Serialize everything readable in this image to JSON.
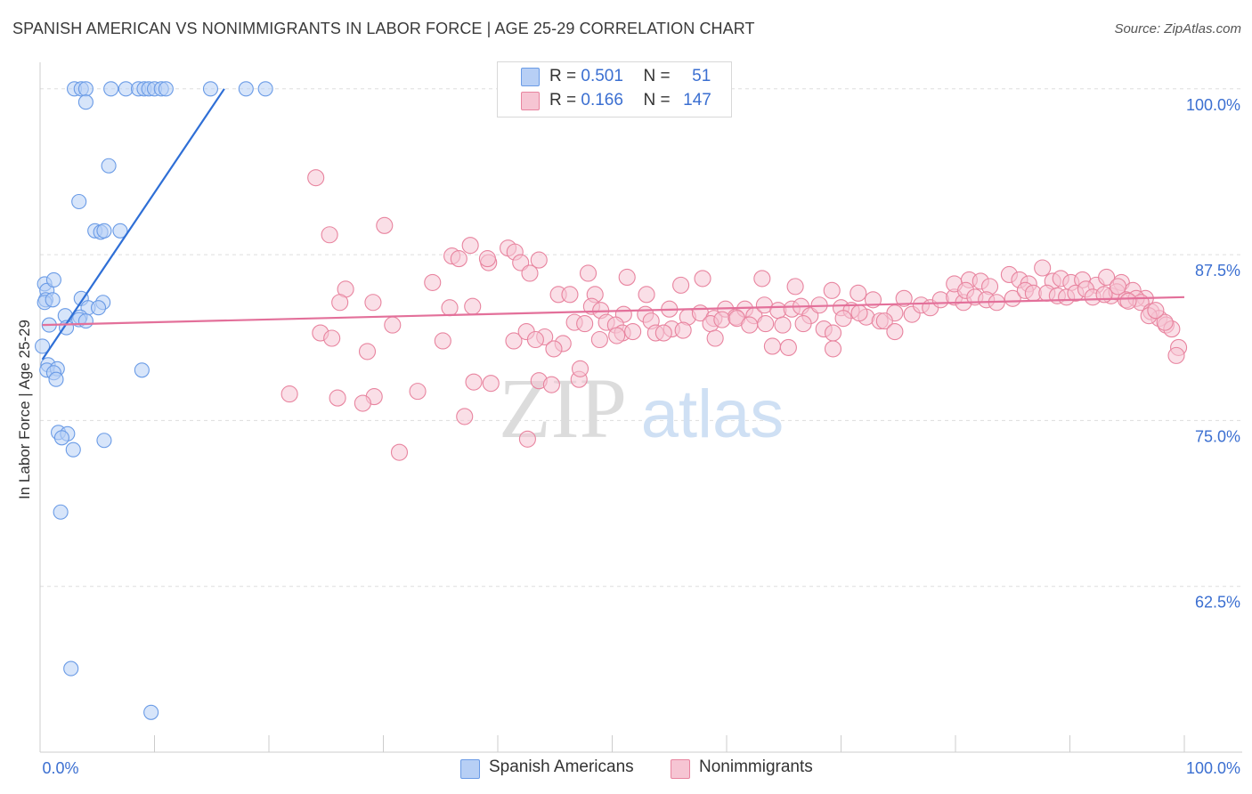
{
  "title": "SPANISH AMERICAN VS NONIMMIGRANTS IN LABOR FORCE | AGE 25-29 CORRELATION CHART",
  "source": "Source: ZipAtlas.com",
  "watermark": {
    "zip": "ZIP",
    "atlas": "atlas"
  },
  "legend": {
    "r_label": "R =",
    "n_label": "N =",
    "rows": [
      {
        "r": "0.501",
        "n": "51"
      },
      {
        "r": "0.166",
        "n": "147"
      }
    ]
  },
  "chart_data": {
    "type": "scatter",
    "ylabel": "In Labor Force | Age 25-29",
    "xlabel": "",
    "xlim": [
      0,
      100
    ],
    "ylim": [
      50,
      102
    ],
    "x_tick_labels": [
      "0.0%",
      "100.0%"
    ],
    "y_ticks": [
      62.5,
      75.0,
      87.5,
      100.0
    ],
    "y_tick_labels": [
      "62.5%",
      "75.0%",
      "87.5%",
      "100.0%"
    ],
    "grid": true,
    "series": [
      {
        "name": "Spanish Americans",
        "color": "#6a9be6",
        "fill": "#b7cff5",
        "trend": {
          "x1": 0.2,
          "y1": 79.6,
          "x2": 16.1,
          "y2": 100.0
        },
        "points": [
          [
            3.0,
            100.0
          ],
          [
            3.6,
            100.0
          ],
          [
            4.0,
            100.0
          ],
          [
            6.2,
            100.0
          ],
          [
            7.5,
            100.0
          ],
          [
            8.6,
            100.0
          ],
          [
            9.1,
            100.0
          ],
          [
            9.5,
            100.0
          ],
          [
            10.0,
            100.0
          ],
          [
            10.6,
            100.0
          ],
          [
            11.0,
            100.0
          ],
          [
            14.9,
            100.0
          ],
          [
            18.0,
            100.0
          ],
          [
            19.7,
            100.0
          ],
          [
            4.0,
            99.0
          ],
          [
            6.0,
            94.2
          ],
          [
            3.4,
            91.5
          ],
          [
            4.8,
            89.3
          ],
          [
            5.3,
            89.2
          ],
          [
            5.6,
            89.3
          ],
          [
            7.0,
            89.3
          ],
          [
            0.4,
            85.3
          ],
          [
            0.6,
            84.8
          ],
          [
            1.2,
            85.6
          ],
          [
            0.5,
            84.1
          ],
          [
            0.4,
            83.9
          ],
          [
            1.1,
            84.1
          ],
          [
            3.6,
            84.2
          ],
          [
            5.5,
            83.9
          ],
          [
            4.2,
            83.5
          ],
          [
            5.1,
            83.5
          ],
          [
            2.2,
            82.9
          ],
          [
            3.5,
            82.8
          ],
          [
            3.4,
            82.6
          ],
          [
            4.0,
            82.5
          ],
          [
            0.8,
            82.2
          ],
          [
            2.3,
            82.0
          ],
          [
            0.2,
            80.6
          ],
          [
            0.7,
            79.2
          ],
          [
            0.6,
            78.8
          ],
          [
            1.5,
            78.9
          ],
          [
            1.2,
            78.6
          ],
          [
            1.4,
            78.1
          ],
          [
            8.9,
            78.8
          ],
          [
            1.6,
            74.1
          ],
          [
            2.4,
            74.0
          ],
          [
            1.9,
            73.7
          ],
          [
            5.6,
            73.5
          ],
          [
            2.9,
            72.8
          ],
          [
            1.8,
            68.1
          ],
          [
            2.7,
            56.3
          ],
          [
            9.7,
            53.0
          ]
        ]
      },
      {
        "name": "Nonimmigrants",
        "color": "#e8849f",
        "fill": "#f6c5d3",
        "trend": {
          "x1": 0.2,
          "y1": 82.2,
          "x2": 100.0,
          "y2": 84.3
        },
        "points": [
          [
            24.1,
            93.3
          ],
          [
            25.3,
            89.0
          ],
          [
            30.1,
            89.7
          ],
          [
            36.0,
            87.4
          ],
          [
            36.6,
            87.2
          ],
          [
            37.6,
            88.2
          ],
          [
            39.2,
            86.9
          ],
          [
            39.1,
            87.2
          ],
          [
            40.9,
            88.0
          ],
          [
            41.5,
            87.7
          ],
          [
            42.0,
            86.9
          ],
          [
            42.8,
            86.1
          ],
          [
            43.6,
            87.1
          ],
          [
            26.7,
            84.9
          ],
          [
            26.2,
            83.9
          ],
          [
            29.1,
            83.9
          ],
          [
            34.3,
            85.4
          ],
          [
            35.8,
            83.5
          ],
          [
            37.8,
            83.6
          ],
          [
            45.3,
            84.5
          ],
          [
            46.3,
            84.5
          ],
          [
            47.9,
            86.1
          ],
          [
            48.5,
            84.5
          ],
          [
            51.3,
            85.8
          ],
          [
            53.0,
            84.5
          ],
          [
            56.0,
            85.2
          ],
          [
            57.9,
            85.7
          ],
          [
            63.1,
            85.7
          ],
          [
            66.0,
            85.1
          ],
          [
            69.2,
            84.8
          ],
          [
            71.5,
            84.6
          ],
          [
            72.8,
            84.1
          ],
          [
            48.2,
            83.6
          ],
          [
            49.0,
            83.3
          ],
          [
            51.0,
            83.0
          ],
          [
            52.9,
            83.0
          ],
          [
            53.4,
            82.5
          ],
          [
            55.0,
            83.4
          ],
          [
            56.6,
            82.8
          ],
          [
            57.7,
            83.1
          ],
          [
            58.9,
            82.7
          ],
          [
            59.9,
            83.4
          ],
          [
            60.8,
            82.8
          ],
          [
            61.6,
            83.4
          ],
          [
            62.4,
            82.9
          ],
          [
            63.3,
            83.7
          ],
          [
            64.5,
            83.3
          ],
          [
            65.7,
            83.4
          ],
          [
            66.5,
            83.6
          ],
          [
            67.3,
            82.9
          ],
          [
            68.1,
            83.7
          ],
          [
            70.0,
            83.5
          ],
          [
            70.9,
            83.3
          ],
          [
            72.2,
            82.8
          ],
          [
            73.4,
            82.5
          ],
          [
            74.7,
            83.1
          ],
          [
            75.5,
            84.2
          ],
          [
            76.2,
            83.0
          ],
          [
            77.0,
            83.7
          ],
          [
            77.8,
            83.5
          ],
          [
            78.7,
            84.1
          ],
          [
            79.9,
            84.3
          ],
          [
            80.7,
            83.9
          ],
          [
            24.5,
            81.6
          ],
          [
            25.5,
            81.2
          ],
          [
            30.8,
            82.2
          ],
          [
            35.2,
            81.0
          ],
          [
            41.4,
            81.0
          ],
          [
            42.5,
            81.7
          ],
          [
            44.1,
            81.3
          ],
          [
            43.3,
            81.1
          ],
          [
            45.7,
            80.8
          ],
          [
            46.7,
            82.4
          ],
          [
            47.6,
            82.3
          ],
          [
            49.5,
            82.4
          ],
          [
            50.3,
            82.2
          ],
          [
            50.9,
            81.6
          ],
          [
            51.8,
            81.7
          ],
          [
            53.8,
            81.6
          ],
          [
            55.2,
            81.9
          ],
          [
            56.2,
            81.8
          ],
          [
            58.6,
            82.3
          ],
          [
            59.6,
            82.6
          ],
          [
            60.9,
            82.7
          ],
          [
            62.0,
            82.2
          ],
          [
            63.4,
            82.3
          ],
          [
            64.9,
            82.2
          ],
          [
            66.7,
            82.3
          ],
          [
            68.5,
            81.9
          ],
          [
            69.3,
            81.6
          ],
          [
            70.2,
            82.7
          ],
          [
            71.6,
            83.1
          ],
          [
            73.8,
            82.5
          ],
          [
            28.6,
            80.2
          ],
          [
            44.9,
            80.4
          ],
          [
            48.9,
            81.1
          ],
          [
            50.4,
            81.4
          ],
          [
            54.5,
            81.6
          ],
          [
            59.0,
            81.2
          ],
          [
            64.0,
            80.6
          ],
          [
            69.3,
            80.4
          ],
          [
            74.7,
            81.7
          ],
          [
            65.4,
            80.5
          ],
          [
            37.9,
            77.9
          ],
          [
            39.4,
            77.8
          ],
          [
            43.6,
            78.0
          ],
          [
            44.7,
            77.7
          ],
          [
            47.1,
            78.1
          ],
          [
            47.2,
            78.9
          ],
          [
            29.2,
            76.8
          ],
          [
            21.8,
            77.0
          ],
          [
            26.0,
            76.7
          ],
          [
            28.2,
            76.3
          ],
          [
            33.0,
            77.2
          ],
          [
            37.1,
            75.3
          ],
          [
            42.6,
            73.6
          ],
          [
            31.4,
            72.6
          ],
          [
            79.9,
            85.3
          ],
          [
            81.2,
            85.6
          ],
          [
            82.2,
            85.5
          ],
          [
            83.0,
            85.1
          ],
          [
            84.7,
            86.0
          ],
          [
            85.6,
            85.6
          ],
          [
            86.4,
            85.3
          ],
          [
            87.6,
            86.5
          ],
          [
            88.5,
            85.5
          ],
          [
            89.2,
            85.7
          ],
          [
            90.1,
            85.4
          ],
          [
            91.1,
            85.6
          ],
          [
            92.3,
            85.2
          ],
          [
            93.2,
            85.8
          ],
          [
            94.5,
            85.4
          ],
          [
            95.5,
            84.8
          ],
          [
            96.6,
            84.2
          ],
          [
            80.9,
            84.8
          ],
          [
            81.7,
            84.3
          ],
          [
            82.7,
            84.1
          ],
          [
            83.6,
            83.9
          ],
          [
            85.0,
            84.2
          ],
          [
            86.1,
            84.8
          ],
          [
            86.8,
            84.6
          ],
          [
            88.0,
            84.6
          ],
          [
            88.9,
            84.4
          ],
          [
            89.7,
            84.3
          ],
          [
            90.5,
            84.6
          ],
          [
            91.4,
            84.9
          ],
          [
            92.0,
            84.3
          ],
          [
            93.6,
            84.4
          ],
          [
            94.1,
            84.7
          ],
          [
            94.9,
            84.1
          ],
          [
            95.8,
            84.2
          ],
          [
            96.2,
            83.9
          ],
          [
            97.1,
            83.2
          ],
          [
            97.8,
            82.7
          ],
          [
            98.4,
            82.2
          ],
          [
            98.9,
            81.9
          ],
          [
            99.5,
            80.5
          ],
          [
            99.3,
            79.9
          ],
          [
            98.3,
            82.4
          ],
          [
            96.9,
            82.9
          ],
          [
            97.5,
            83.3
          ],
          [
            95.1,
            84.0
          ],
          [
            93.0,
            84.5
          ],
          [
            94.2,
            85.1
          ]
        ]
      }
    ]
  }
}
